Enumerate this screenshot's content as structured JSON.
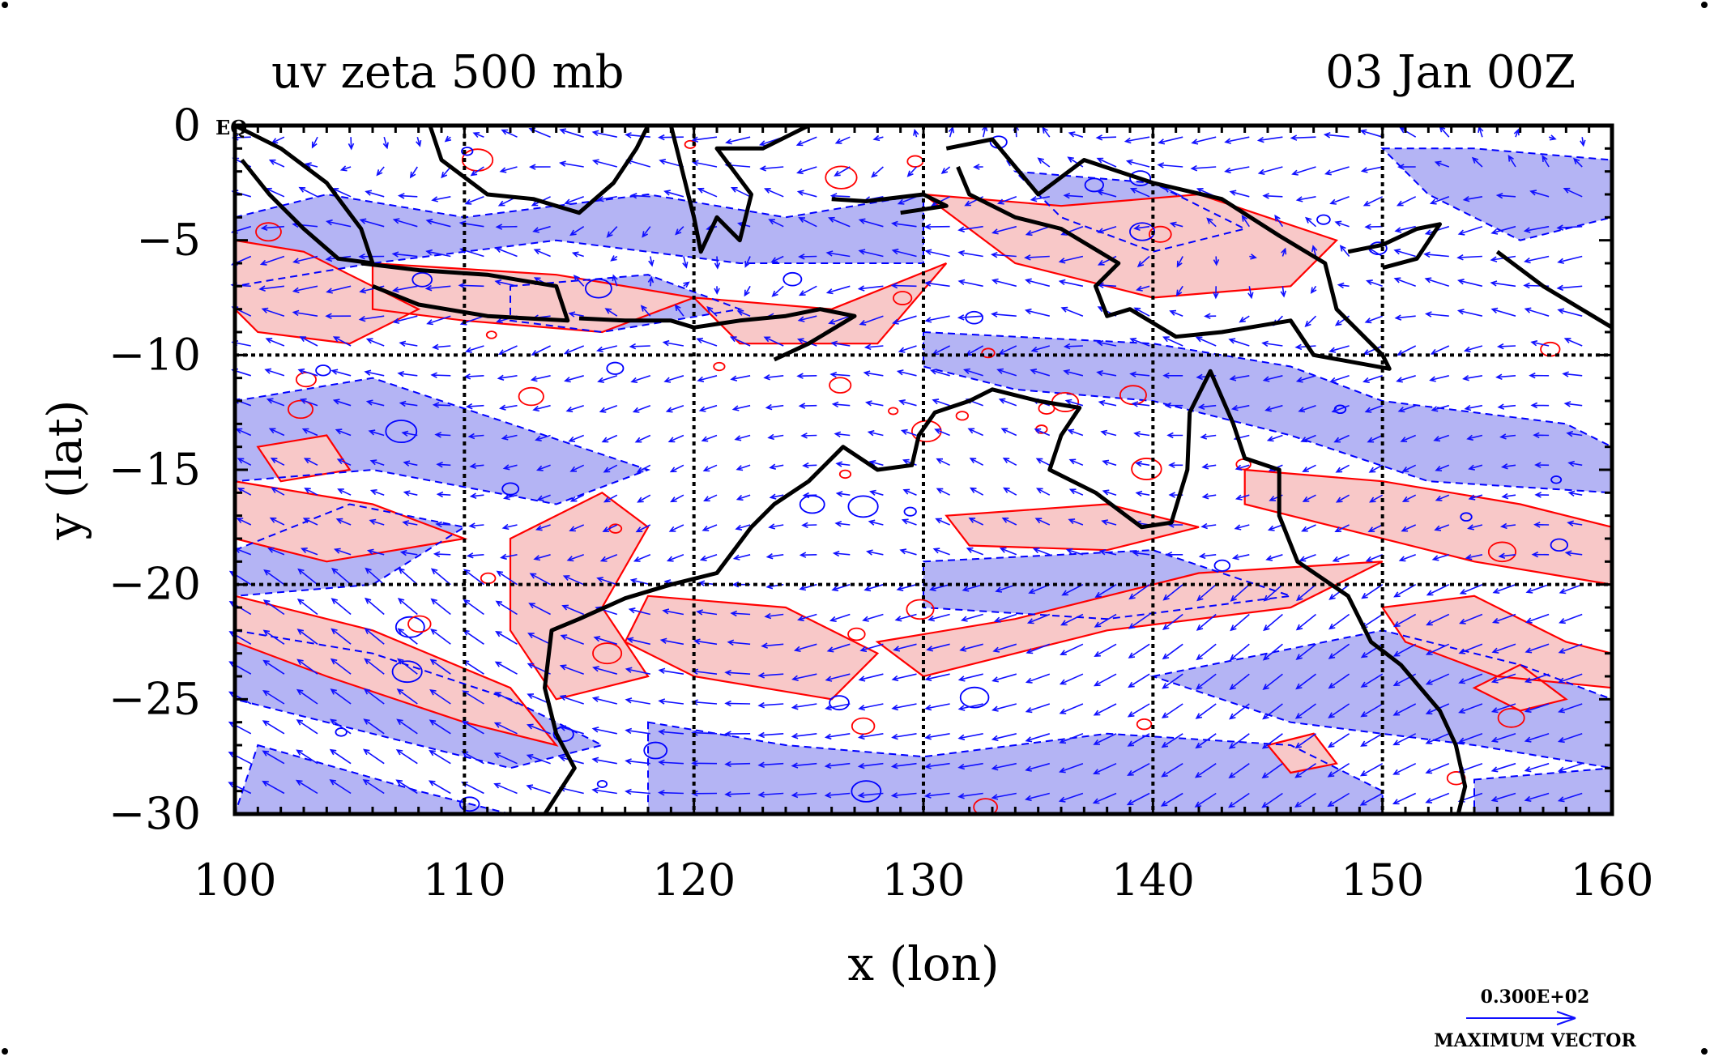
{
  "title_left": "uv zeta 500 mb",
  "title_right": "03 Jan 00Z",
  "eq_label": "EQ",
  "xlabel": "x (lon)",
  "ylabel": "y (lat)",
  "legend": {
    "value": "0.300E+02",
    "label": "MAXIMUM VECTOR"
  },
  "colors": {
    "positive_vorticity_fill": "#f8c8c8",
    "positive_vorticity_line": "#ff0000",
    "negative_vorticity_fill": "#b4b4f4",
    "negative_vorticity_line": "#0000ff",
    "wind_vectors": "#1010ff",
    "coastline": "#000000"
  },
  "chart_data": {
    "type": "map",
    "projection": "lon-lat",
    "xlim": [
      100,
      160
    ],
    "ylim": [
      -30,
      0
    ],
    "x_ticks": [
      100,
      110,
      120,
      130,
      140,
      150,
      160
    ],
    "y_ticks": [
      0,
      -5,
      -10,
      -15,
      -20,
      -25,
      -30
    ],
    "x_tick_labels": [
      "100",
      "110",
      "120",
      "130",
      "140",
      "150",
      "160"
    ],
    "y_tick_labels": [
      "0",
      "−5",
      "−10",
      "−15",
      "−20",
      "−25",
      "−30"
    ],
    "grid": true,
    "grid_x": [
      110,
      120,
      130,
      140,
      150
    ],
    "grid_y": [
      -10,
      -20
    ],
    "fields": [
      "wind vectors (u,v)",
      "relative vorticity zeta"
    ],
    "level": "500 mb"
  }
}
